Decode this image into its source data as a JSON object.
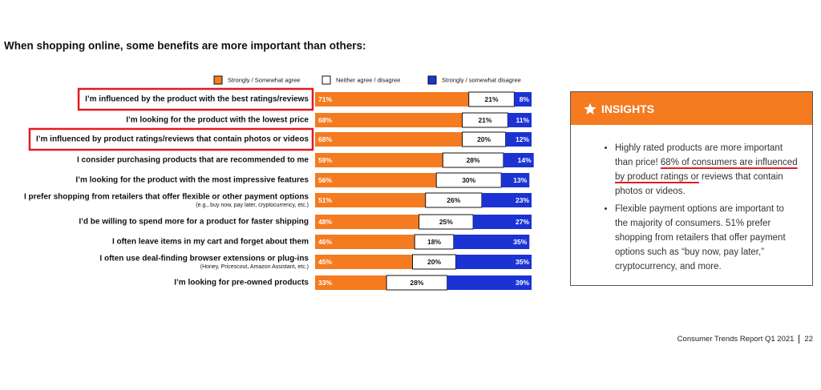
{
  "chart_data": {
    "type": "stacked_barh",
    "title": "When shopping online, some benefits are more important than others:",
    "categories": [
      "I’m influenced by the product with the best ratings/reviews",
      "I’m looking for the product with the lowest price",
      "I’m influenced by product ratings/reviews that contain photos or videos",
      "I consider purchasing products that are recommended to me",
      "I’m looking for the product with the most impressive features",
      "I prefer shopping from retailers that offer flexible or other payment options",
      "I’d be willing to spend more for a product for faster shipping",
      "I often leave items in my cart and forget about them",
      "I often use deal-finding browser extensions or plug-ins",
      "I’m looking for pre-owned products"
    ],
    "category_notes": [
      null,
      null,
      null,
      null,
      null,
      "(e.g., buy now, pay later, cryptocurrency, etc.)",
      null,
      null,
      "(Honey, Pricescout, Amazon Assistant, etc.)",
      null
    ],
    "series": [
      {
        "name": "Strongly / Somewhat agree",
        "color": "#f47b20",
        "values": [
          71,
          68,
          68,
          59,
          56,
          51,
          48,
          46,
          45,
          33
        ],
        "value_labels": [
          "71%",
          "68%",
          "68%",
          "59%",
          "56%",
          "51%",
          "48%",
          "46%",
          "45%",
          "33%"
        ]
      },
      {
        "name": "Neither agree / disagree",
        "color": "#ffffff",
        "values": [
          21,
          21,
          20,
          28,
          30,
          26,
          25,
          18,
          20,
          28
        ],
        "value_labels": [
          "21%",
          "21%",
          "20%",
          "28%",
          "30%",
          "26%",
          "25%",
          "18%",
          "20%",
          "28%"
        ]
      },
      {
        "name": "Strongly / somewhat disagree",
        "color": "#1c33d4",
        "values": [
          8,
          11,
          12,
          14,
          13,
          23,
          27,
          35,
          35,
          39
        ],
        "value_labels": [
          "8%",
          "11%",
          "12%",
          "14%",
          "13%",
          "23%",
          "27%",
          "35%",
          "35%",
          "39%"
        ]
      }
    ],
    "xlim": [
      0,
      100
    ],
    "highlight_categories": [
      0,
      2
    ],
    "highlight_color": "#e01b24"
  },
  "insights": {
    "title": "INSIGHTS",
    "bullets": [
      {
        "text": "Highly rated products are more important than price!",
        "underlined": "68% of consumers are influenced by product ratings or",
        "after": "reviews that contain photos or videos."
      },
      {
        "text": "Flexible payment options are important to the majority of consumers. 51% prefer shopping from retailers that offer payment options such as “buy now, pay later,” cryptocurrency, and more."
      }
    ]
  },
  "footer": {
    "report": "Consumer Trends Report Q1 2021",
    "page": "22"
  }
}
